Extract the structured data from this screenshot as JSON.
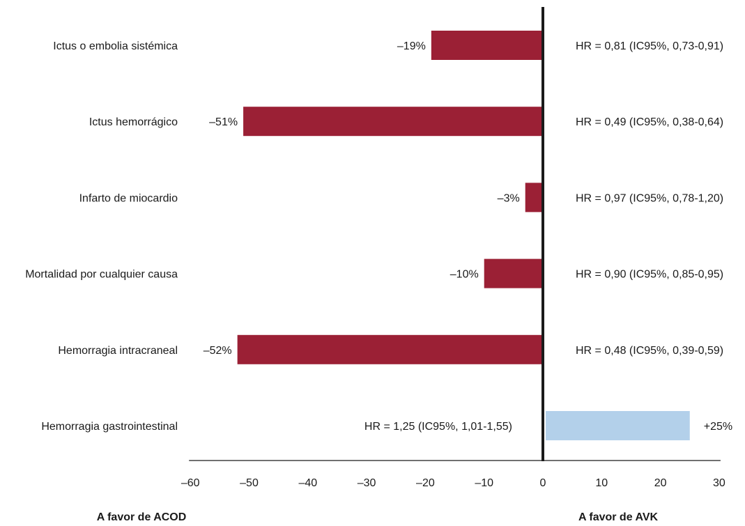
{
  "chart_data": {
    "type": "bar",
    "orientation": "horizontal",
    "categories": [
      "Ictus o embolia sistémica",
      "Ictus hemorrágico",
      "Infarto de miocardio",
      "Mortalidad por cualquier causa",
      "Hemorragia intracraneal",
      "Hemorragia gastrointestinal"
    ],
    "values": [
      -19,
      -51,
      -3,
      -10,
      -52,
      25
    ],
    "value_labels": [
      "–19%",
      "–51%",
      "–3%",
      "–10%",
      "–52%",
      "+25%"
    ],
    "hr_labels": [
      "HR = 0,81 (IC95%, 0,73-0,91)",
      "HR = 0,49 (IC95%, 0,38-0,64)",
      "HR = 0,97 (IC95%, 0,78-1,20)",
      "HR = 0,90 (IC95%, 0,85-0,95)",
      "HR = 0,48 (IC95%, 0,39-0,59)",
      "HR = 1,25 (IC95%, 1,01-1,55)"
    ],
    "xlim": [
      -60,
      30
    ],
    "ticks": [
      -60,
      -50,
      -40,
      -30,
      -20,
      -10,
      0,
      10,
      20,
      30
    ],
    "tick_labels": [
      "–60",
      "–50",
      "–40",
      "–30",
      "–20",
      "–10",
      "0",
      "10",
      "20",
      "30"
    ],
    "left_caption": "A favor de ACOD",
    "right_caption": "A favor de AVK",
    "colors": {
      "negative": "#9b2035",
      "positive": "#b3d0ea",
      "axis": "#1a1a1a"
    },
    "grid": false
  }
}
